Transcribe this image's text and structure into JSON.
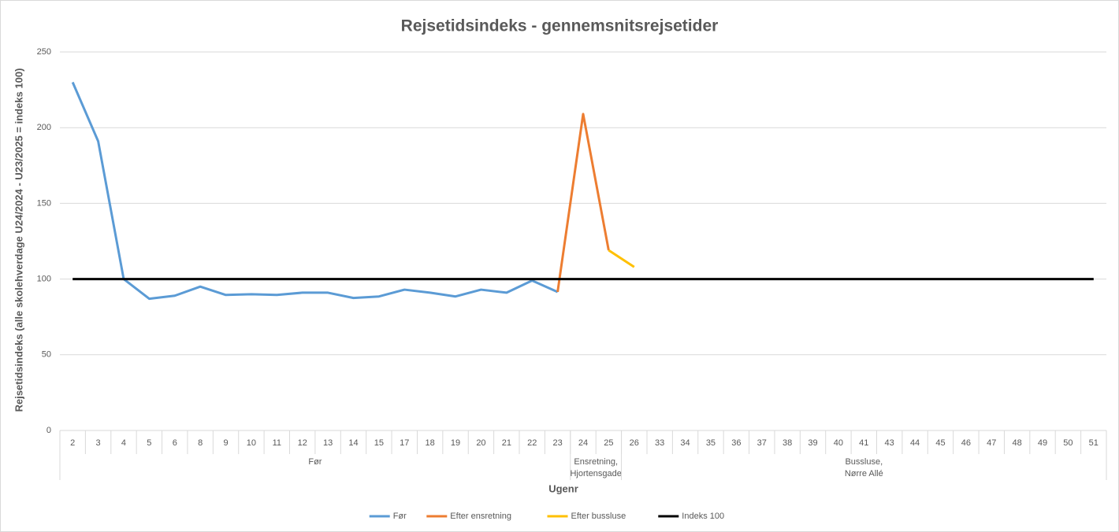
{
  "chart_data": {
    "type": "line",
    "title": "Rejsetidsindeks - gennemsnitsrejsetider",
    "y_label": "Rejsetidsindeks (alle skolehverdage U24/2024 - U23/2025 = indeks 100)",
    "x_label": "Ugenr",
    "categories": [
      "2",
      "3",
      "4",
      "5",
      "6",
      "8",
      "9",
      "10",
      "11",
      "12",
      "13",
      "14",
      "15",
      "17",
      "18",
      "19",
      "20",
      "21",
      "22",
      "23",
      "24",
      "25",
      "26",
      "33",
      "34",
      "35",
      "36",
      "37",
      "38",
      "39",
      "40",
      "41",
      "43",
      "44",
      "45",
      "46",
      "47",
      "48",
      "49",
      "50",
      "51"
    ],
    "category_groups": [
      {
        "label": [
          "Før"
        ],
        "start": 0,
        "end": 19
      },
      {
        "label": [
          "Ensretning,",
          "Hjortensgade"
        ],
        "start": 20,
        "end": 21
      },
      {
        "label": [
          "Bussluse,",
          "Nørre Allé"
        ],
        "start": 22,
        "end": 40
      }
    ],
    "ylim": [
      0,
      250
    ],
    "yticks": [
      0,
      50,
      100,
      150,
      200,
      250
    ],
    "grid": true,
    "legend": "bottom",
    "series": [
      {
        "name": "Før",
        "color": "#5b9bd5",
        "values": [
          230,
          191,
          100,
          87,
          89,
          95,
          89.5,
          90,
          89.5,
          91,
          91,
          87.5,
          88.5,
          93,
          91,
          88.5,
          93,
          91,
          99,
          91.5,
          null,
          null,
          null,
          null,
          null,
          null,
          null,
          null,
          null,
          null,
          null,
          null,
          null,
          null,
          null,
          null,
          null,
          null,
          null,
          null,
          null
        ]
      },
      {
        "name": "Efter ensretning",
        "color": "#ed7d31",
        "values": [
          null,
          null,
          null,
          null,
          null,
          null,
          null,
          null,
          null,
          null,
          null,
          null,
          null,
          null,
          null,
          null,
          null,
          null,
          null,
          91.5,
          209,
          119,
          null,
          null,
          null,
          null,
          null,
          null,
          null,
          null,
          null,
          null,
          null,
          null,
          null,
          null,
          null,
          null,
          null,
          null,
          null
        ]
      },
      {
        "name": "Efter bussluse",
        "color": "#ffc000",
        "values": [
          null,
          null,
          null,
          null,
          null,
          null,
          null,
          null,
          null,
          null,
          null,
          null,
          null,
          null,
          null,
          null,
          null,
          null,
          null,
          null,
          null,
          119,
          108,
          null,
          null,
          null,
          null,
          null,
          null,
          null,
          null,
          null,
          null,
          null,
          null,
          null,
          null,
          null,
          null,
          null,
          null
        ]
      },
      {
        "name": "Indeks 100",
        "color": "#000000",
        "values": [
          100,
          100,
          100,
          100,
          100,
          100,
          100,
          100,
          100,
          100,
          100,
          100,
          100,
          100,
          100,
          100,
          100,
          100,
          100,
          100,
          100,
          100,
          100,
          100,
          100,
          100,
          100,
          100,
          100,
          100,
          100,
          100,
          100,
          100,
          100,
          100,
          100,
          100,
          100,
          100,
          100
        ]
      }
    ]
  }
}
